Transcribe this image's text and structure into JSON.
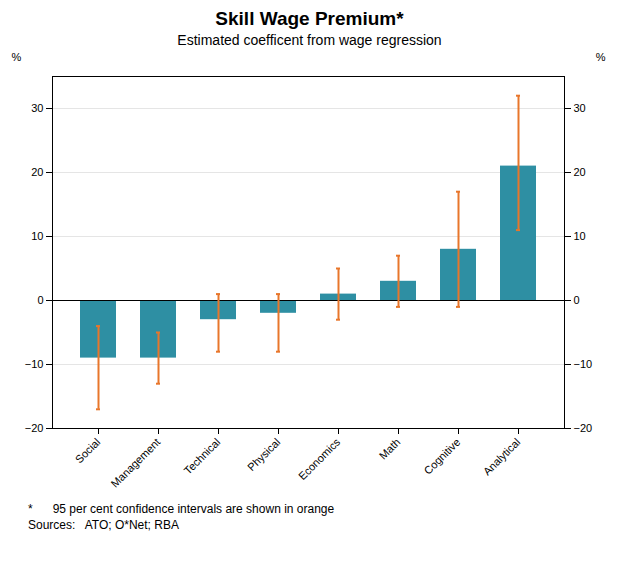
{
  "chart_data": {
    "type": "bar",
    "title": "Skill Wage Premium*",
    "subtitle": "Estimated coefficent from wage regression",
    "categories": [
      "Social",
      "Management",
      "Technical",
      "Physical",
      "Economics",
      "Math",
      "Cognitive",
      "Analytical"
    ],
    "values": [
      -9,
      -9,
      -3,
      -2,
      1,
      3,
      8,
      21
    ],
    "color": "#2e8fa3",
    "error_bars": {
      "lower": [
        -17,
        -13,
        -8,
        -8,
        -3,
        -1,
        -1,
        11
      ],
      "upper": [
        -4,
        -5,
        1,
        1,
        5,
        7,
        17,
        32
      ],
      "color": "#e8762b"
    },
    "ylabel": "%",
    "ylim": [
      -20,
      35
    ],
    "yticks": [
      -20,
      -10,
      0,
      10,
      20,
      30
    ],
    "y2label": "%",
    "y2lim": [
      -20,
      35
    ],
    "y2ticks": [
      -20,
      -10,
      0,
      10,
      20,
      30
    ],
    "grid": true,
    "footnotes": [
      "*      95 per cent confidence intervals are shown in orange",
      "Sources:   ATO; O*Net; RBA"
    ]
  }
}
